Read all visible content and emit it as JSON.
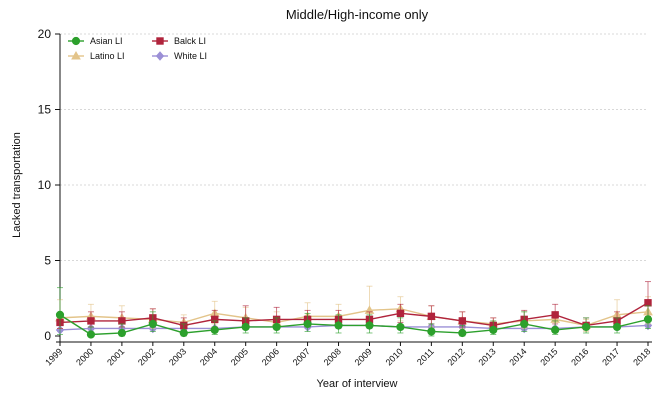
{
  "chart_data": {
    "type": "line",
    "title": "Middle/High-income only",
    "xlabel": "Year of interview",
    "ylabel": "Lacked transportation",
    "ylim": [
      0,
      20
    ],
    "yticks": [
      0,
      5,
      10,
      15,
      20
    ],
    "grid": true,
    "legend_position": "top-left",
    "categories": [
      "1999",
      "2000",
      "2001",
      "2002",
      "2003",
      "2004",
      "2005",
      "2006",
      "2007",
      "2008",
      "2009",
      "2010",
      "2011",
      "2012",
      "2013",
      "2014",
      "2015",
      "2016",
      "2017",
      "2018"
    ],
    "series": [
      {
        "name": "Asian LI",
        "color": "#2ca02c",
        "marker": "circle",
        "values": [
          1.4,
          0.1,
          0.2,
          0.8,
          0.2,
          0.4,
          0.6,
          0.6,
          0.8,
          0.7,
          0.7,
          0.6,
          0.3,
          0.2,
          0.4,
          0.8,
          0.4,
          0.6,
          0.6,
          1.1
        ],
        "err_low": [
          0.1,
          0.0,
          0.0,
          0.3,
          0.0,
          0.1,
          0.2,
          0.2,
          0.3,
          0.2,
          0.2,
          0.2,
          0.0,
          0.0,
          0.1,
          0.3,
          0.1,
          0.2,
          0.2,
          0.5
        ],
        "err_high": [
          3.2,
          0.6,
          0.8,
          1.6,
          0.8,
          1.0,
          1.2,
          1.2,
          1.5,
          1.4,
          1.4,
          1.2,
          0.8,
          0.7,
          1.0,
          1.6,
          1.0,
          1.2,
          1.2,
          2.0
        ]
      },
      {
        "name": "Latino LI",
        "color": "#e3c48a",
        "marker": "triangle",
        "values": [
          1.2,
          1.3,
          1.2,
          1.1,
          0.9,
          1.5,
          1.2,
          0.9,
          1.3,
          1.3,
          1.7,
          1.8,
          1.3,
          1.0,
          0.8,
          1.0,
          1.1,
          0.7,
          1.4,
          1.6
        ],
        "err_low": [
          0.5,
          0.6,
          0.6,
          0.5,
          0.3,
          0.8,
          0.6,
          0.4,
          0.6,
          0.6,
          0.9,
          1.0,
          0.6,
          0.5,
          0.4,
          0.5,
          0.5,
          0.3,
          0.7,
          0.8
        ],
        "err_high": [
          2.4,
          2.1,
          2.0,
          1.8,
          1.4,
          2.3,
          1.9,
          1.6,
          2.2,
          2.1,
          3.3,
          2.6,
          2.0,
          1.6,
          1.2,
          1.6,
          1.6,
          1.1,
          2.4,
          2.6
        ]
      },
      {
        "name": "Balck LI",
        "color": "#b0243c",
        "marker": "square",
        "values": [
          0.9,
          1.0,
          1.0,
          1.2,
          0.7,
          1.1,
          1.0,
          1.1,
          1.1,
          1.1,
          1.1,
          1.5,
          1.3,
          1.0,
          0.7,
          1.1,
          1.4,
          0.7,
          1.0,
          2.2
        ],
        "err_low": [
          0.5,
          0.6,
          0.6,
          0.7,
          0.4,
          0.6,
          0.6,
          0.6,
          0.6,
          0.6,
          0.6,
          0.9,
          0.8,
          0.6,
          0.4,
          0.6,
          0.8,
          0.4,
          0.6,
          1.3
        ],
        "err_high": [
          1.5,
          1.6,
          1.6,
          1.8,
          1.2,
          1.7,
          2.0,
          1.9,
          1.7,
          1.7,
          1.6,
          2.1,
          2.0,
          1.6,
          1.2,
          1.7,
          2.1,
          1.2,
          1.6,
          3.6
        ]
      },
      {
        "name": "White LI",
        "color": "#9b8fd6",
        "marker": "diamond",
        "values": [
          0.4,
          0.5,
          0.5,
          0.5,
          0.5,
          0.5,
          0.6,
          0.6,
          0.6,
          0.7,
          0.7,
          0.6,
          0.6,
          0.6,
          0.5,
          0.5,
          0.5,
          0.6,
          0.6,
          0.7
        ],
        "err_low": [
          0.3,
          0.4,
          0.4,
          0.4,
          0.4,
          0.4,
          0.5,
          0.5,
          0.5,
          0.5,
          0.5,
          0.5,
          0.5,
          0.5,
          0.4,
          0.4,
          0.4,
          0.5,
          0.5,
          0.6
        ],
        "err_high": [
          0.5,
          0.6,
          0.6,
          0.6,
          0.6,
          0.6,
          0.7,
          0.7,
          0.7,
          0.8,
          0.8,
          0.7,
          0.7,
          0.7,
          0.6,
          0.6,
          0.6,
          0.7,
          0.7,
          0.8
        ]
      }
    ]
  }
}
